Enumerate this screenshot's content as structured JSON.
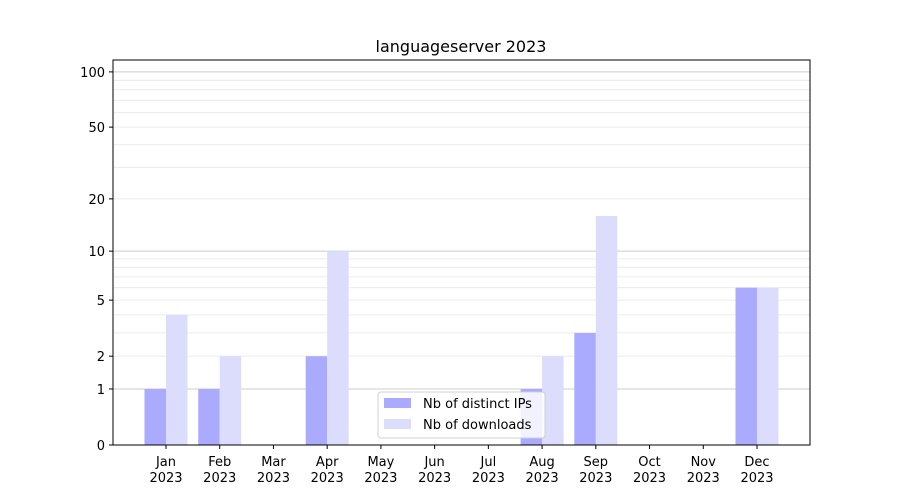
{
  "chart_data": {
    "type": "bar",
    "title": "languageserver 2023",
    "xlabel": "",
    "ylabel": "",
    "yscale": "log(1+y)",
    "ylim": [
      0,
      116
    ],
    "yticks": [
      0,
      1,
      2,
      5,
      10,
      20,
      50,
      100
    ],
    "grid": true,
    "legend_placement": "bottom-center",
    "categories": [
      "Jan\n2023",
      "Feb\n2023",
      "Mar\n2023",
      "Apr\n2023",
      "May\n2023",
      "Jun\n2023",
      "Jul\n2023",
      "Aug\n2023",
      "Sep\n2023",
      "Oct\n2023",
      "Nov\n2023",
      "Dec\n2023"
    ],
    "series": [
      {
        "name": "Nb of distinct IPs",
        "color": "#aaaaff",
        "values": [
          1,
          1,
          0,
          2,
          0,
          0,
          0,
          1,
          3,
          0,
          0,
          6
        ]
      },
      {
        "name": "Nb of downloads",
        "color": "#dcdcfc",
        "values": [
          4,
          2,
          0,
          10,
          0,
          0,
          0,
          2,
          16,
          0,
          0,
          6
        ]
      }
    ]
  }
}
